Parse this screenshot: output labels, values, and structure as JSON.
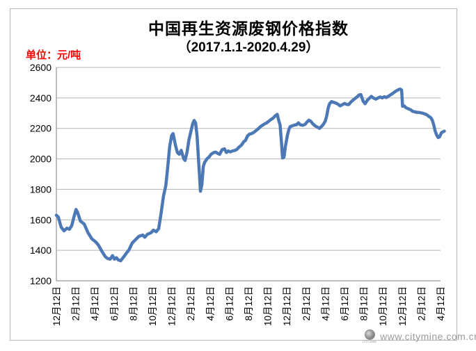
{
  "header": {
    "title": "中国再生资源废钢价格指数",
    "subtitle": "（2017.1.1-2020.4.29）",
    "unit_label": "单位：元/吨"
  },
  "watermark": {
    "url": "www.citymine.com.cn",
    "logo_caption": "CITY MINE"
  },
  "colors": {
    "line": "#4C79B5",
    "grid": "#b3b3b3",
    "axis": "#7f7f7f",
    "tick_text": "#000000",
    "title_text": "#000000",
    "unit_text": "#ff0000",
    "watermark_text": "#9b9b9b"
  },
  "chart_data": {
    "type": "line",
    "title": "中国再生资源废钢价格指数（2017.1.1-2020.4.29）",
    "ylabel": "单位：元/吨",
    "xlabel": "",
    "ylim": [
      1200,
      2600
    ],
    "y_ticks": [
      2600,
      2400,
      2200,
      2000,
      1800,
      1600,
      1400,
      1200
    ],
    "x_tick_labels": [
      "12月12日",
      "2月12日",
      "4月12日",
      "6月12日",
      "8月12日",
      "10月12日",
      "12月12日",
      "2月12日",
      "4月12日",
      "6月12日",
      "8月12日",
      "10月12日",
      "12月12日",
      "2月12日",
      "4月12日",
      "6月12日",
      "8月12日",
      "10月12日",
      "12月12日",
      "2月12日",
      "4月12日"
    ],
    "x_tick_interval_months": 2,
    "x_range_months": [
      0,
      40
    ],
    "grid": "horizontal",
    "legend": "none",
    "series": [
      {
        "name": "废钢价格指数",
        "points": [
          [
            0,
            1630
          ],
          [
            0.2,
            1618
          ],
          [
            0.5,
            1552
          ],
          [
            0.8,
            1528
          ],
          [
            1.1,
            1545
          ],
          [
            1.35,
            1538
          ],
          [
            1.6,
            1562
          ],
          [
            1.9,
            1635
          ],
          [
            2.05,
            1668
          ],
          [
            2.2,
            1650
          ],
          [
            2.5,
            1592
          ],
          [
            2.9,
            1572
          ],
          [
            3.3,
            1515
          ],
          [
            3.7,
            1475
          ],
          [
            4.1,
            1455
          ],
          [
            4.4,
            1432
          ],
          [
            4.75,
            1392
          ],
          [
            5.1,
            1358
          ],
          [
            5.35,
            1346
          ],
          [
            5.6,
            1342
          ],
          [
            5.85,
            1365
          ],
          [
            6.05,
            1342
          ],
          [
            6.25,
            1352
          ],
          [
            6.45,
            1337
          ],
          [
            6.7,
            1332
          ],
          [
            7.0,
            1356
          ],
          [
            7.3,
            1382
          ],
          [
            7.55,
            1402
          ],
          [
            7.9,
            1448
          ],
          [
            8.25,
            1470
          ],
          [
            8.6,
            1492
          ],
          [
            9.0,
            1500
          ],
          [
            9.2,
            1486
          ],
          [
            9.5,
            1506
          ],
          [
            9.85,
            1515
          ],
          [
            10.1,
            1532
          ],
          [
            10.4,
            1522
          ],
          [
            10.65,
            1542
          ],
          [
            10.9,
            1640
          ],
          [
            11.15,
            1755
          ],
          [
            11.4,
            1825
          ],
          [
            11.6,
            1950
          ],
          [
            11.8,
            2080
          ],
          [
            12.0,
            2152
          ],
          [
            12.15,
            2166
          ],
          [
            12.4,
            2090
          ],
          [
            12.6,
            2042
          ],
          [
            12.8,
            2030
          ],
          [
            13.0,
            2056
          ],
          [
            13.25,
            2002
          ],
          [
            13.4,
            1990
          ],
          [
            13.6,
            2042
          ],
          [
            13.8,
            2122
          ],
          [
            14.05,
            2192
          ],
          [
            14.2,
            2232
          ],
          [
            14.35,
            2252
          ],
          [
            14.5,
            2235
          ],
          [
            14.65,
            2150
          ],
          [
            14.8,
            2000
          ],
          [
            14.9,
            1898
          ],
          [
            15.0,
            1788
          ],
          [
            15.15,
            1832
          ],
          [
            15.3,
            1950
          ],
          [
            15.45,
            1978
          ],
          [
            15.7,
            2002
          ],
          [
            15.9,
            2012
          ],
          [
            16.1,
            2030
          ],
          [
            16.4,
            2042
          ],
          [
            16.6,
            2044
          ],
          [
            16.8,
            2036
          ],
          [
            17.0,
            2030
          ],
          [
            17.25,
            2060
          ],
          [
            17.5,
            2066
          ],
          [
            17.7,
            2042
          ],
          [
            17.9,
            2052
          ],
          [
            18.1,
            2046
          ],
          [
            18.35,
            2052
          ],
          [
            18.6,
            2056
          ],
          [
            18.8,
            2062
          ],
          [
            19.0,
            2076
          ],
          [
            19.3,
            2092
          ],
          [
            19.5,
            2112
          ],
          [
            19.7,
            2122
          ],
          [
            19.9,
            2150
          ],
          [
            20.1,
            2162
          ],
          [
            20.35,
            2166
          ],
          [
            20.6,
            2176
          ],
          [
            20.8,
            2186
          ],
          [
            21.0,
            2196
          ],
          [
            21.25,
            2212
          ],
          [
            21.5,
            2222
          ],
          [
            21.7,
            2230
          ],
          [
            21.9,
            2236
          ],
          [
            22.1,
            2246
          ],
          [
            22.3,
            2256
          ],
          [
            22.55,
            2266
          ],
          [
            22.75,
            2280
          ],
          [
            23.0,
            2292
          ],
          [
            23.15,
            2252
          ],
          [
            23.3,
            2222
          ],
          [
            23.45,
            2100
          ],
          [
            23.55,
            2006
          ],
          [
            23.7,
            2012
          ],
          [
            23.85,
            2082
          ],
          [
            24.05,
            2152
          ],
          [
            24.2,
            2192
          ],
          [
            24.35,
            2212
          ],
          [
            24.55,
            2216
          ],
          [
            24.8,
            2222
          ],
          [
            25.0,
            2224
          ],
          [
            25.2,
            2236
          ],
          [
            25.4,
            2224
          ],
          [
            25.65,
            2220
          ],
          [
            25.9,
            2226
          ],
          [
            26.1,
            2242
          ],
          [
            26.3,
            2254
          ],
          [
            26.5,
            2246
          ],
          [
            26.7,
            2230
          ],
          [
            26.95,
            2216
          ],
          [
            27.2,
            2208
          ],
          [
            27.4,
            2200
          ],
          [
            27.6,
            2212
          ],
          [
            27.8,
            2226
          ],
          [
            28.0,
            2248
          ],
          [
            28.15,
            2282
          ],
          [
            28.3,
            2332
          ],
          [
            28.45,
            2362
          ],
          [
            28.65,
            2376
          ],
          [
            28.9,
            2370
          ],
          [
            29.1,
            2366
          ],
          [
            29.3,
            2360
          ],
          [
            29.55,
            2348
          ],
          [
            29.8,
            2356
          ],
          [
            30.0,
            2364
          ],
          [
            30.2,
            2358
          ],
          [
            30.45,
            2356
          ],
          [
            30.65,
            2372
          ],
          [
            30.9,
            2386
          ],
          [
            31.1,
            2396
          ],
          [
            31.3,
            2406
          ],
          [
            31.5,
            2418
          ],
          [
            31.7,
            2422
          ],
          [
            31.95,
            2378
          ],
          [
            32.15,
            2362
          ],
          [
            32.4,
            2386
          ],
          [
            32.6,
            2398
          ],
          [
            32.8,
            2410
          ],
          [
            33.0,
            2400
          ],
          [
            33.25,
            2392
          ],
          [
            33.5,
            2400
          ],
          [
            33.7,
            2406
          ],
          [
            33.95,
            2400
          ],
          [
            34.15,
            2408
          ],
          [
            34.35,
            2402
          ],
          [
            34.55,
            2410
          ],
          [
            34.8,
            2420
          ],
          [
            35.0,
            2428
          ],
          [
            35.2,
            2438
          ],
          [
            35.45,
            2448
          ],
          [
            35.65,
            2455
          ],
          [
            35.8,
            2458
          ],
          [
            35.95,
            2452
          ],
          [
            36.05,
            2345
          ],
          [
            36.2,
            2348
          ],
          [
            36.4,
            2336
          ],
          [
            36.65,
            2328
          ],
          [
            36.9,
            2322
          ],
          [
            37.1,
            2312
          ],
          [
            37.35,
            2308
          ],
          [
            37.55,
            2305
          ],
          [
            37.75,
            2305
          ],
          [
            37.95,
            2302
          ],
          [
            38.15,
            2300
          ],
          [
            38.4,
            2294
          ],
          [
            38.6,
            2288
          ],
          [
            38.8,
            2278
          ],
          [
            39.0,
            2270
          ],
          [
            39.15,
            2252
          ],
          [
            39.3,
            2222
          ],
          [
            39.45,
            2182
          ],
          [
            39.6,
            2156
          ],
          [
            39.75,
            2140
          ],
          [
            39.9,
            2144
          ],
          [
            40.1,
            2172
          ],
          [
            40.4,
            2182
          ]
        ]
      }
    ]
  }
}
